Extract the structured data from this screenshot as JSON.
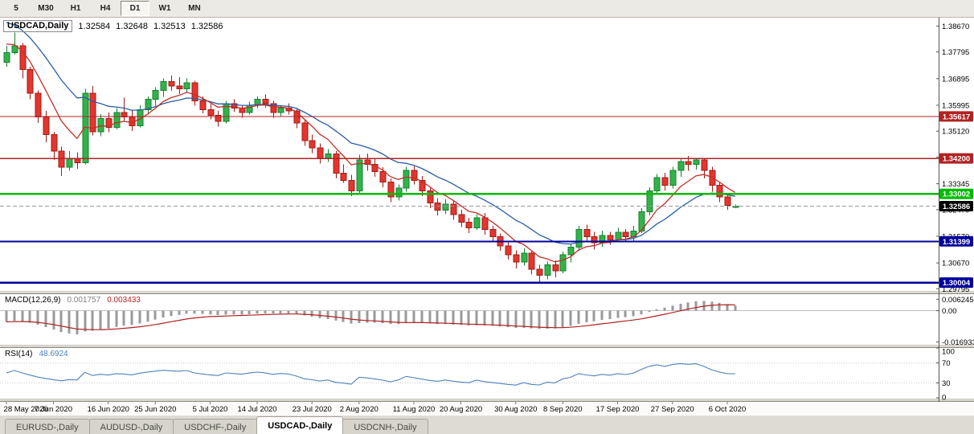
{
  "toolbar": {
    "timeframes": [
      {
        "label": "5",
        "active": false
      },
      {
        "label": "M30",
        "active": false
      },
      {
        "label": "H1",
        "active": false
      },
      {
        "label": "H4",
        "active": false
      },
      {
        "label": "D1",
        "active": true
      },
      {
        "label": "W1",
        "active": false
      },
      {
        "label": "MN",
        "active": false
      }
    ]
  },
  "title": {
    "symbol": "USDCAD,Daily",
    "open": "1.32584",
    "high": "1.32648",
    "low": "1.32513",
    "close": "1.32586"
  },
  "price_axis": {
    "labels": [
      "1.38670",
      "1.37795",
      "1.36895",
      "1.35995",
      "1.35120",
      "1.34245",
      "1.33345",
      "1.32470",
      "1.31570",
      "1.30670",
      "1.29795"
    ]
  },
  "chart_data": {
    "type": "candlestick",
    "title": "USDCAD,Daily",
    "ylim": [
      1.2975,
      1.389
    ],
    "candle_colors": {
      "up_fill": "#33B24A",
      "up_stroke": "#158030",
      "down_fill": "#E5352E",
      "down_stroke": "#9E1D17"
    },
    "candles": [
      [
        1.3745,
        1.38,
        1.373,
        1.3778
      ],
      [
        1.3778,
        1.3845,
        1.377,
        1.38
      ],
      [
        1.38,
        1.381,
        1.369,
        1.372
      ],
      [
        1.372,
        1.373,
        1.362,
        1.364
      ],
      [
        1.364,
        1.365,
        1.354,
        1.356
      ],
      [
        1.356,
        1.358,
        1.3475,
        1.35
      ],
      [
        1.35,
        1.351,
        1.3415,
        1.3445
      ],
      [
        1.3445,
        1.346,
        1.336,
        1.339
      ],
      [
        1.339,
        1.3445,
        1.3378,
        1.342
      ],
      [
        1.342,
        1.344,
        1.3385,
        1.3405
      ],
      [
        1.3405,
        1.3655,
        1.34,
        1.364
      ],
      [
        1.364,
        1.3665,
        1.3498,
        1.351
      ],
      [
        1.351,
        1.357,
        1.3495,
        1.3555
      ],
      [
        1.3555,
        1.3575,
        1.3508,
        1.3525
      ],
      [
        1.3525,
        1.359,
        1.3518,
        1.3575
      ],
      [
        1.3575,
        1.3625,
        1.3545,
        1.356
      ],
      [
        1.356,
        1.3585,
        1.3512,
        1.353
      ],
      [
        1.353,
        1.36,
        1.3525,
        1.3585
      ],
      [
        1.3585,
        1.363,
        1.3568,
        1.362
      ],
      [
        1.362,
        1.366,
        1.3598,
        1.365
      ],
      [
        1.365,
        1.369,
        1.3628,
        1.368
      ],
      [
        1.368,
        1.37,
        1.3648,
        1.3665
      ],
      [
        1.3665,
        1.3695,
        1.3638,
        1.3655
      ],
      [
        1.3655,
        1.369,
        1.3642,
        1.3675
      ],
      [
        1.3675,
        1.3682,
        1.3598,
        1.3615
      ],
      [
        1.3615,
        1.363,
        1.3572,
        1.3585
      ],
      [
        1.3585,
        1.3605,
        1.3552,
        1.3565
      ],
      [
        1.3565,
        1.358,
        1.3528,
        1.3545
      ],
      [
        1.3545,
        1.3615,
        1.3538,
        1.3605
      ],
      [
        1.3605,
        1.362,
        1.3578,
        1.359
      ],
      [
        1.359,
        1.36,
        1.3558,
        1.3575
      ],
      [
        1.3575,
        1.3612,
        1.3568,
        1.36
      ],
      [
        1.36,
        1.363,
        1.359,
        1.362
      ],
      [
        1.362,
        1.3636,
        1.3592,
        1.3605
      ],
      [
        1.3605,
        1.3615,
        1.3558,
        1.3575
      ],
      [
        1.3575,
        1.36,
        1.3562,
        1.359
      ],
      [
        1.359,
        1.3606,
        1.3568,
        1.358
      ],
      [
        1.358,
        1.359,
        1.3522,
        1.354
      ],
      [
        1.354,
        1.3552,
        1.3462,
        1.348
      ],
      [
        1.348,
        1.35,
        1.3438,
        1.3455
      ],
      [
        1.3455,
        1.347,
        1.3402,
        1.342
      ],
      [
        1.342,
        1.3452,
        1.3408,
        1.3435
      ],
      [
        1.3435,
        1.3445,
        1.3352,
        1.337
      ],
      [
        1.337,
        1.34,
        1.3338,
        1.3345
      ],
      [
        1.3345,
        1.3365,
        1.3292,
        1.331
      ],
      [
        1.331,
        1.3432,
        1.3302,
        1.3415
      ],
      [
        1.3415,
        1.3436,
        1.3378,
        1.34
      ],
      [
        1.34,
        1.342,
        1.3358,
        1.3375
      ],
      [
        1.3375,
        1.339,
        1.3322,
        1.334
      ],
      [
        1.334,
        1.3352,
        1.3272,
        1.329
      ],
      [
        1.329,
        1.3332,
        1.3278,
        1.332
      ],
      [
        1.332,
        1.3392,
        1.3308,
        1.338
      ],
      [
        1.338,
        1.3396,
        1.3332,
        1.3345
      ],
      [
        1.3345,
        1.336,
        1.3292,
        1.331
      ],
      [
        1.331,
        1.3322,
        1.3252,
        1.327
      ],
      [
        1.327,
        1.3286,
        1.3228,
        1.3245
      ],
      [
        1.3245,
        1.3282,
        1.3232,
        1.3265
      ],
      [
        1.3265,
        1.3276,
        1.3212,
        1.323
      ],
      [
        1.323,
        1.3246,
        1.3188,
        1.3205
      ],
      [
        1.3205,
        1.322,
        1.3168,
        1.3185
      ],
      [
        1.3185,
        1.3232,
        1.3178,
        1.322
      ],
      [
        1.322,
        1.3236,
        1.3162,
        1.318
      ],
      [
        1.318,
        1.3192,
        1.3138,
        1.3155
      ],
      [
        1.3155,
        1.3166,
        1.3108,
        1.3125
      ],
      [
        1.3125,
        1.3136,
        1.3078,
        1.3095
      ],
      [
        1.3095,
        1.311,
        1.3048,
        1.307
      ],
      [
        1.307,
        1.3116,
        1.3058,
        1.31
      ],
      [
        1.31,
        1.3106,
        1.3028,
        1.3045
      ],
      [
        1.3045,
        1.306,
        1.3004,
        1.3025
      ],
      [
        1.3025,
        1.3072,
        1.3012,
        1.306
      ],
      [
        1.306,
        1.3076,
        1.3018,
        1.304
      ],
      [
        1.304,
        1.3106,
        1.3032,
        1.3095
      ],
      [
        1.3095,
        1.3132,
        1.3068,
        1.312
      ],
      [
        1.312,
        1.3192,
        1.3108,
        1.318
      ],
      [
        1.318,
        1.3196,
        1.3138,
        1.3155
      ],
      [
        1.3155,
        1.3172,
        1.3112,
        1.3135
      ],
      [
        1.3135,
        1.3176,
        1.3122,
        1.316
      ],
      [
        1.316,
        1.3172,
        1.3128,
        1.3145
      ],
      [
        1.3145,
        1.3186,
        1.3138,
        1.317
      ],
      [
        1.317,
        1.3182,
        1.3138,
        1.3155
      ],
      [
        1.3155,
        1.3192,
        1.3142,
        1.3175
      ],
      [
        1.3175,
        1.3252,
        1.3168,
        1.324
      ],
      [
        1.324,
        1.3322,
        1.3228,
        1.331
      ],
      [
        1.331,
        1.3368,
        1.3298,
        1.3355
      ],
      [
        1.3355,
        1.3372,
        1.3312,
        1.333
      ],
      [
        1.333,
        1.3392,
        1.3318,
        1.338
      ],
      [
        1.338,
        1.3422,
        1.3358,
        1.341
      ],
      [
        1.341,
        1.3428,
        1.3378,
        1.34
      ],
      [
        1.34,
        1.3422,
        1.3382,
        1.3415
      ],
      [
        1.3415,
        1.342,
        1.3352,
        1.338
      ],
      [
        1.338,
        1.3392,
        1.3308,
        1.333
      ],
      [
        1.333,
        1.3342,
        1.3272,
        1.329
      ],
      [
        1.329,
        1.3302,
        1.3246,
        1.3262
      ],
      [
        1.32584,
        1.32648,
        1.32513,
        1.32586
      ]
    ],
    "date_labels": [
      {
        "index": 0,
        "text": "28 May 2020"
      },
      {
        "index": 6,
        "text": "7 Jun 2020"
      },
      {
        "index": 13,
        "text": "16 Jun 2020"
      },
      {
        "index": 19,
        "text": "25 Jun 2020"
      },
      {
        "index": 26,
        "text": "5 Jul 2020"
      },
      {
        "index": 32,
        "text": "14 Jul 2020"
      },
      {
        "index": 39,
        "text": "23 Jul 2020"
      },
      {
        "index": 45,
        "text": "2 Aug 2020"
      },
      {
        "index": 52,
        "text": "11 Aug 2020"
      },
      {
        "index": 58,
        "text": "20 Aug 2020"
      },
      {
        "index": 65,
        "text": "30 Aug 2020"
      },
      {
        "index": 71,
        "text": "8 Sep 2020"
      },
      {
        "index": 78,
        "text": "17 Sep 2020"
      },
      {
        "index": 85,
        "text": "27 Sep 2020"
      },
      {
        "index": 92,
        "text": "6 Oct 2020"
      }
    ],
    "moving_averages": [
      {
        "name": "ema-slow-blue",
        "period": 16,
        "seed": 1.388,
        "color": "#2A5CA8"
      },
      {
        "name": "ema-fast-red",
        "period": 7,
        "seed": 1.3806,
        "color": "#C03028"
      }
    ],
    "horizontal_lines": [
      {
        "price": 1.35617,
        "label": "1.35617",
        "color": "#B22222",
        "width": 1.2
      },
      {
        "price": 1.342,
        "label": "1.34200",
        "color": "#B22222",
        "width": 1.6
      },
      {
        "price": 1.33002,
        "label": "1.33002",
        "color": "#00BB00",
        "width": 2.2
      },
      {
        "price": 1.31399,
        "label": "1.31399",
        "color": "#00009B",
        "width": 2
      },
      {
        "price": 1.30004,
        "label": "1.30004",
        "color": "#00009B",
        "width": 2.5
      }
    ],
    "current_price": {
      "value": 1.32586,
      "label": "1.32586",
      "badge_color": "#000000"
    }
  },
  "macd_panel": {
    "name": "MACD(12,26,9)",
    "macd_value": "0.001757",
    "signal_value": "0.003433",
    "axis_labels": [
      "0.006245",
      "0.00",
      "-0.016933"
    ],
    "axis_values": [
      0.006245,
      0,
      -0.016933
    ],
    "ylim": [
      -0.018,
      0.009
    ],
    "fast": 12,
    "slow": 26,
    "signal": 9,
    "seed_fast": 1.3795,
    "seed_slow": 1.3855,
    "hist_color": "#9A9A9A",
    "signal_color": "#B22222"
  },
  "rsi_panel": {
    "name": "RSI(14)",
    "value": "48.6924",
    "period": 14,
    "axis_labels": [
      "100",
      "70",
      "30",
      "0"
    ],
    "axis_values": [
      100,
      70,
      30,
      0
    ],
    "levels": [
      70,
      30
    ],
    "line_color": "#4F81BD"
  },
  "tabs": [
    {
      "label": "EURUSD-,Daily",
      "active": false
    },
    {
      "label": "AUDUSD-,Daily",
      "active": false
    },
    {
      "label": "USDCHF-,Daily",
      "active": false
    },
    {
      "label": "USDCAD-,Daily",
      "active": true
    },
    {
      "label": "USDCNH-,Daily",
      "active": false
    }
  ]
}
